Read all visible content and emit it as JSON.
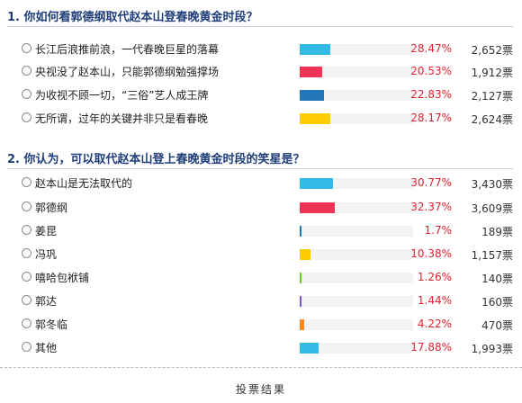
{
  "colors": {
    "title": "#1f3e7a",
    "percent": "#e0232f",
    "track": "#f3f3f3"
  },
  "questions": [
    {
      "title": "1. 你如何看郭德纲取代赵本山登春晚黄金时段？",
      "options": [
        {
          "label": "长江后浪推前浪，一代春晚巨星的落幕",
          "percent": "28.47%",
          "votes": "2,652票",
          "share": 0.2847,
          "color": "#33bbe6"
        },
        {
          "label": "央视没了赵本山，只能郭德纲勉强撑场",
          "percent": "20.53%",
          "votes": "1,912票",
          "share": 0.2053,
          "color": "#ee3355"
        },
        {
          "label": "为收视不顾一切，“三俗”艺人成王牌",
          "percent": "22.83%",
          "votes": "2,127票",
          "share": 0.2283,
          "color": "#2277bb"
        },
        {
          "label": "无所谓，过年的关键并非只是看春晚",
          "percent": "28.17%",
          "votes": "2,624票",
          "share": 0.2817,
          "color": "#ffcc00"
        }
      ]
    },
    {
      "title": "2. 你认为，可以取代赵本山登上春晚黄金时段的笑星是？",
      "options": [
        {
          "label": "赵本山是无法取代的",
          "percent": "30.77%",
          "votes": "3,430票",
          "share": 0.3077,
          "color": "#33bbe6"
        },
        {
          "label": "郭德纲",
          "percent": "32.37%",
          "votes": "3,609票",
          "share": 0.3237,
          "color": "#ee3355"
        },
        {
          "label": "姜昆",
          "percent": "1.7%",
          "votes": "189票",
          "share": 0.017,
          "color": "#2277bb"
        },
        {
          "label": "冯巩",
          "percent": "10.38%",
          "votes": "1,157票",
          "share": 0.1038,
          "color": "#ffcc00"
        },
        {
          "label": "嘻哈包袱铺",
          "percent": "1.26%",
          "votes": "140票",
          "share": 0.0126,
          "color": "#66cc33"
        },
        {
          "label": "郭达",
          "percent": "1.44%",
          "votes": "160票",
          "share": 0.0144,
          "color": "#7755cc"
        },
        {
          "label": "郭冬临",
          "percent": "4.22%",
          "votes": "470票",
          "share": 0.0422,
          "color": "#ff8822"
        },
        {
          "label": "其他",
          "percent": "17.88%",
          "votes": "1,993票",
          "share": 0.1788,
          "color": "#33bbe6"
        }
      ]
    }
  ],
  "footer": {
    "title": "投票结果"
  }
}
